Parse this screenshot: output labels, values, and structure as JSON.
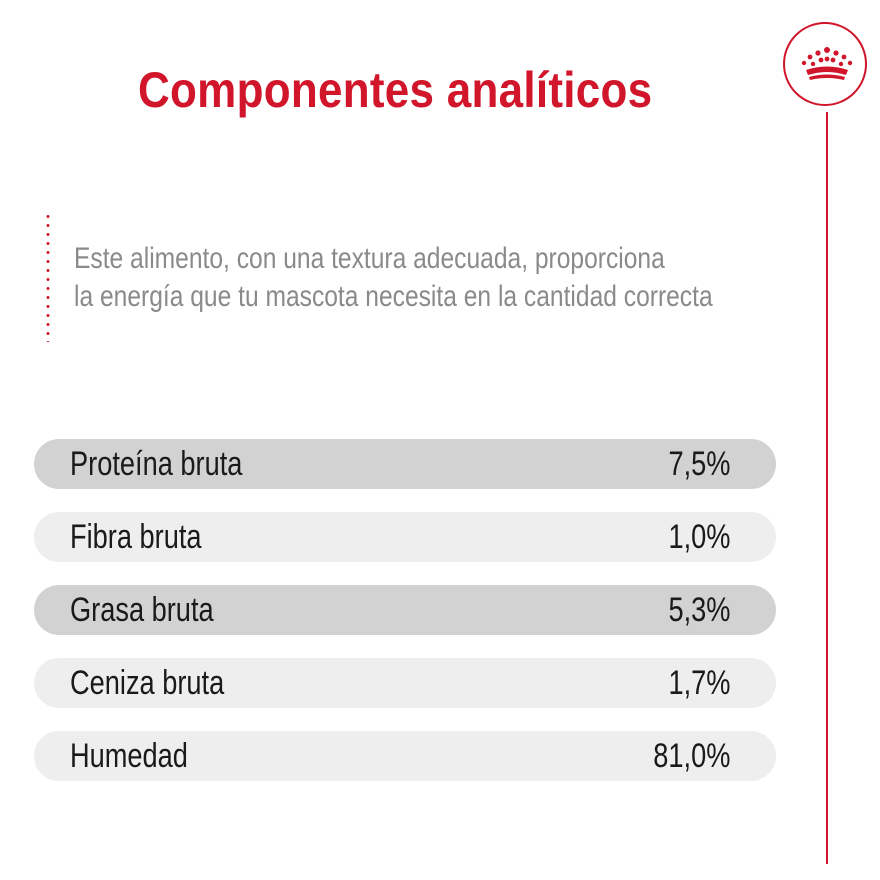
{
  "title": "Componentes analíticos",
  "description": [
    "Este alimento, con una textura adecuada, proporciona",
    "la energía que tu mascota necesita en la cantidad correcta"
  ],
  "colors": {
    "accent": "#d1152a",
    "text": "#1a1a1a",
    "muted_text": "#8a8a8a",
    "row_dark": "#d2d2d2",
    "row_light": "#eeeeee"
  },
  "logo_icon": "crown-icon",
  "components": [
    {
      "label": "Proteína bruta",
      "value": "7,5%",
      "shade": "dark"
    },
    {
      "label": "Fibra bruta",
      "value": "1,0%",
      "shade": "light"
    },
    {
      "label": "Grasa bruta",
      "value": "5,3%",
      "shade": "dark"
    },
    {
      "label": "Ceniza bruta",
      "value": "1,7%",
      "shade": "light"
    },
    {
      "label": "Humedad",
      "value": "81,0%",
      "shade": "light"
    }
  ]
}
